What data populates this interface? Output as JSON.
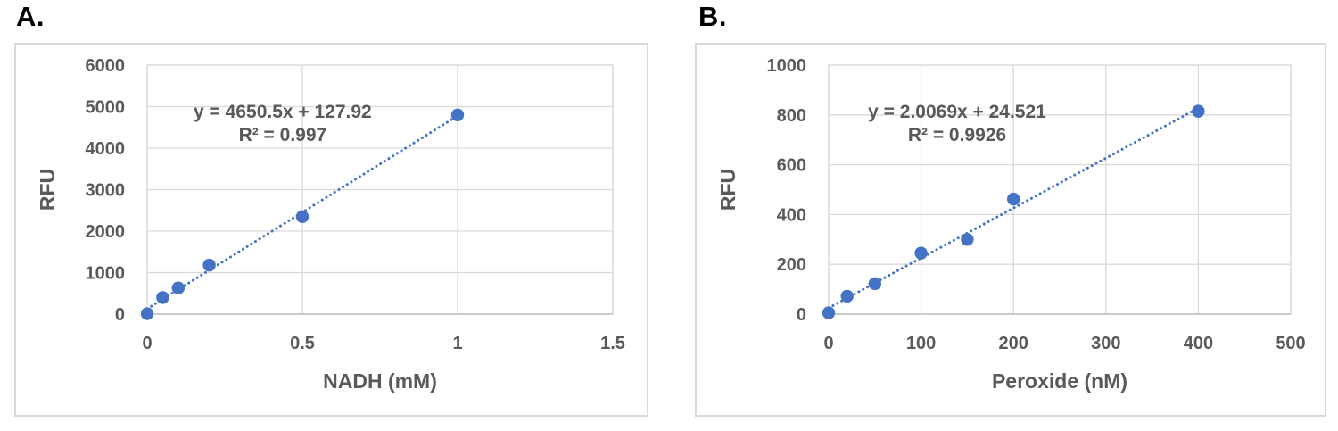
{
  "style": {
    "background": "#FFFFFF",
    "marker_color": "#4472C4",
    "trendline_color": "#4472C4",
    "gridline_color": "#D9D9D9",
    "axis_line_color": "#BFBFBF",
    "tick_text_color": "#595959",
    "equation_text_color": "#595959",
    "panel_border_color": "#D9D9D9",
    "panel_label_color": "#000000"
  },
  "chart_data": [
    {
      "type": "scatter",
      "panel_label": "A.",
      "title": "",
      "xlabel": "NADH (mM)",
      "ylabel": "RFU",
      "x": [
        0,
        0.05,
        0.1,
        0.2,
        0.5,
        1
      ],
      "y": [
        10,
        400,
        630,
        1180,
        2350,
        4800
      ],
      "xlim": [
        0,
        1.5
      ],
      "ylim": [
        0,
        6000
      ],
      "xticks": [
        0,
        0.5,
        1,
        1.5
      ],
      "xtick_labels": [
        "0",
        "0.5",
        "1",
        "1.5"
      ],
      "yticks": [
        0,
        1000,
        2000,
        3000,
        4000,
        5000,
        6000
      ],
      "ytick_labels": [
        "0",
        "1000",
        "2000",
        "3000",
        "4000",
        "5000",
        "6000"
      ],
      "grid": true,
      "legend": "none",
      "marker_style": "circle",
      "trendline": {
        "slope": 4650.5,
        "intercept": 127.92,
        "equation_label": "y = 4650.5x + 127.92",
        "r_squared_label": "R² = 0.997",
        "line_style": "dotted"
      }
    },
    {
      "type": "scatter",
      "panel_label": "B.",
      "title": "",
      "xlabel": "Peroxide (nM)",
      "ylabel": "RFU",
      "x": [
        0,
        20,
        50,
        100,
        150,
        200,
        400
      ],
      "y": [
        5,
        72,
        122,
        245,
        300,
        462,
        815
      ],
      "xlim": [
        0,
        500
      ],
      "ylim": [
        0,
        1000
      ],
      "xticks": [
        0,
        100,
        200,
        300,
        400,
        500
      ],
      "xtick_labels": [
        "0",
        "100",
        "200",
        "300",
        "400",
        "500"
      ],
      "yticks": [
        0,
        200,
        400,
        600,
        800,
        1000
      ],
      "ytick_labels": [
        "0",
        "200",
        "400",
        "600",
        "800",
        "1000"
      ],
      "grid": true,
      "legend": "none",
      "marker_style": "circle",
      "trendline": {
        "slope": 2.0069,
        "intercept": 24.521,
        "equation_label": "y = 2.0069x + 24.521",
        "r_squared_label": "R² = 0.9926",
        "line_style": "dotted"
      }
    }
  ]
}
